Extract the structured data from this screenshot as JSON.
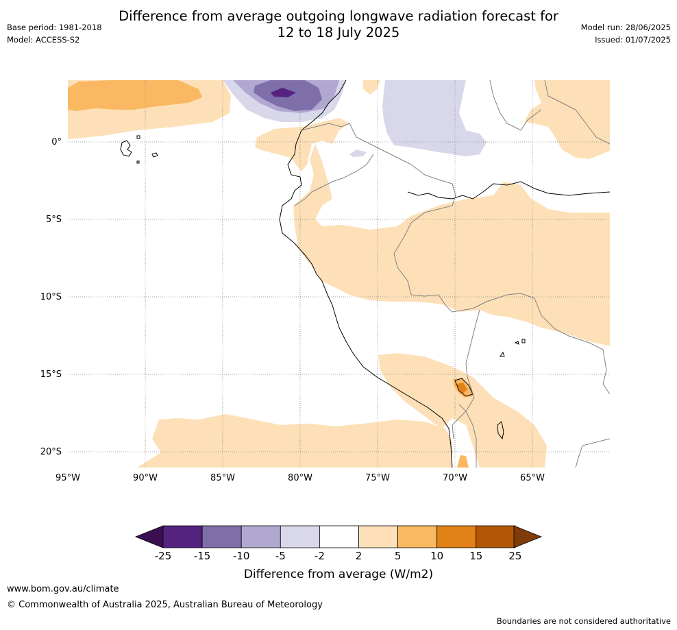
{
  "header": {
    "title_line1": "Difference from average outgoing longwave radiation forecast for",
    "title_line2": "12 to 18 July 2025",
    "base_period": "Base period: 1981-2018",
    "model": "Model: ACCESS-S2",
    "model_run": "Model run: 28/06/2025",
    "issued": "Issued: 01/07/2025"
  },
  "map": {
    "lat_labels": [
      "0°",
      "5°S",
      "10°S",
      "15°S",
      "20°S"
    ],
    "lon_labels": [
      "95°W",
      "90°W",
      "85°W",
      "80°W",
      "75°W",
      "70°W",
      "65°W"
    ]
  },
  "colorbar": {
    "tick_labels": [
      "-25",
      "-15",
      "-10",
      "-5",
      "-2",
      "2",
      "5",
      "10",
      "15",
      "25"
    ],
    "colors": [
      "#3b0f52",
      "#54237f",
      "#7e6eaa",
      "#b1a8d1",
      "#d8d8ea",
      "#ffffff",
      "#fde0b7",
      "#fbb862",
      "#e08215",
      "#b35706",
      "#7f3b08"
    ],
    "label": "Difference from average (W/m2)"
  },
  "footer": {
    "website": "www.bom.gov.au/climate",
    "copyright": "© Commonwealth of Australia 2025, Australian Bureau of Meteorology",
    "disclaimer": "Boundaries are not considered authoritative"
  }
}
